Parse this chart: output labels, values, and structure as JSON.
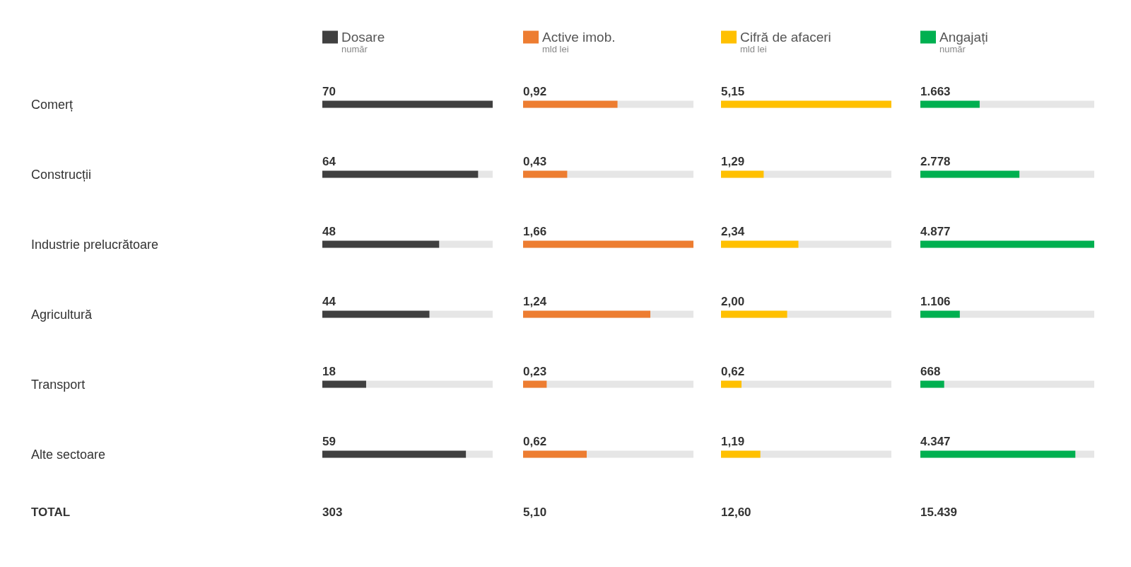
{
  "chart_data": [
    {
      "type": "bar",
      "orientation": "horizontal",
      "categories": [
        "Comerț",
        "Construcții",
        "Industrie prelucrătoare",
        "Agricultură",
        "Transport",
        "Alte sectoare"
      ],
      "subtitle": "număr",
      "legend": "top left",
      "series": [
        {
          "name": "Dosare",
          "color": "#404040",
          "values": [
            70,
            64,
            48,
            44,
            18,
            59
          ],
          "value_labels": [
            "70",
            "64",
            "48",
            "44",
            "18",
            "59"
          ]
        }
      ],
      "annotations": [
        "TOTAL",
        "303"
      ]
    },
    {
      "type": "bar",
      "orientation": "horizontal",
      "categories": [
        null,
        null,
        null,
        null,
        null,
        null
      ],
      "subtitle": "mld lei",
      "legend": "top left",
      "series": [
        {
          "name": "Active imob.",
          "color": "#ed7d31",
          "values": [
            0.92,
            0.43,
            1.66,
            1.24,
            0.23,
            0.62
          ],
          "value_labels": [
            "0,92",
            "0,43",
            "1,66",
            "1,24",
            "0,23",
            "0,62"
          ]
        }
      ],
      "annotations": [
        "5,10"
      ]
    },
    {
      "type": "bar",
      "orientation": "horizontal",
      "categories": [
        null,
        null,
        null,
        null,
        null,
        null
      ],
      "subtitle": "mld lei",
      "legend": "top left",
      "series": [
        {
          "name": "Cifră de afaceri",
          "color": "#ffc000",
          "values": [
            5.15,
            1.29,
            2.34,
            2.0,
            0.62,
            1.19
          ],
          "value_labels": [
            "5,15",
            "1,29",
            "2,34",
            "2,00",
            "0,62",
            "1,19"
          ]
        }
      ],
      "annotations": [
        "12,60"
      ]
    },
    {
      "type": "bar",
      "orientation": "horizontal",
      "categories": [
        null,
        null,
        null,
        null,
        null,
        null
      ],
      "subtitle": "număr",
      "legend": "top left",
      "series": [
        {
          "name": "Angajați",
          "color": "#00b050",
          "values": [
            1663,
            2778,
            4877,
            1106,
            668,
            4347
          ],
          "value_labels": [
            "1.663",
            "2.778",
            "4.877",
            "1.106",
            "668",
            "4.347"
          ]
        }
      ],
      "annotations": [
        "15.439"
      ]
    }
  ]
}
